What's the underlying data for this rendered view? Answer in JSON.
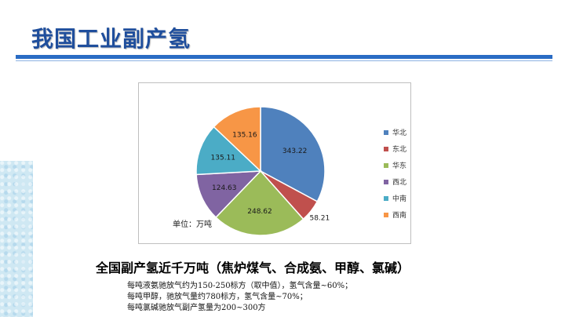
{
  "slide": {
    "title": "我国工业副产氢",
    "subtitle": "全国副产氢近千万吨（焦炉煤气、合成氨、甲醇、氯碱）",
    "notes": [
      "每吨液氨驰放气约为150-250标方（取中值），氢气含量~60%；",
      "每吨甲醇，驰放气量约780标方，氢气含量~70%；",
      "每吨氯碱驰放气副产氢量为200~300方"
    ],
    "title_color": "#1f4e9c",
    "rule_color": "#2a6cc4"
  },
  "chart_data": {
    "type": "pie",
    "unit_label": "单位：万吨",
    "start_angle_deg": 0,
    "direction": "clockwise",
    "legend_position": "right",
    "slices": [
      {
        "label": "华北",
        "value": 343.22,
        "color": "#4f81bd"
      },
      {
        "label": "东北",
        "value": 58.21,
        "color": "#c0504d"
      },
      {
        "label": "华东",
        "value": 248.62,
        "color": "#9bbb59"
      },
      {
        "label": "西北",
        "value": 124.63,
        "color": "#8064a2"
      },
      {
        "label": "中南",
        "value": 135.11,
        "color": "#4bacc6"
      },
      {
        "label": "西南",
        "value": 135.16,
        "color": "#f79646"
      }
    ]
  }
}
